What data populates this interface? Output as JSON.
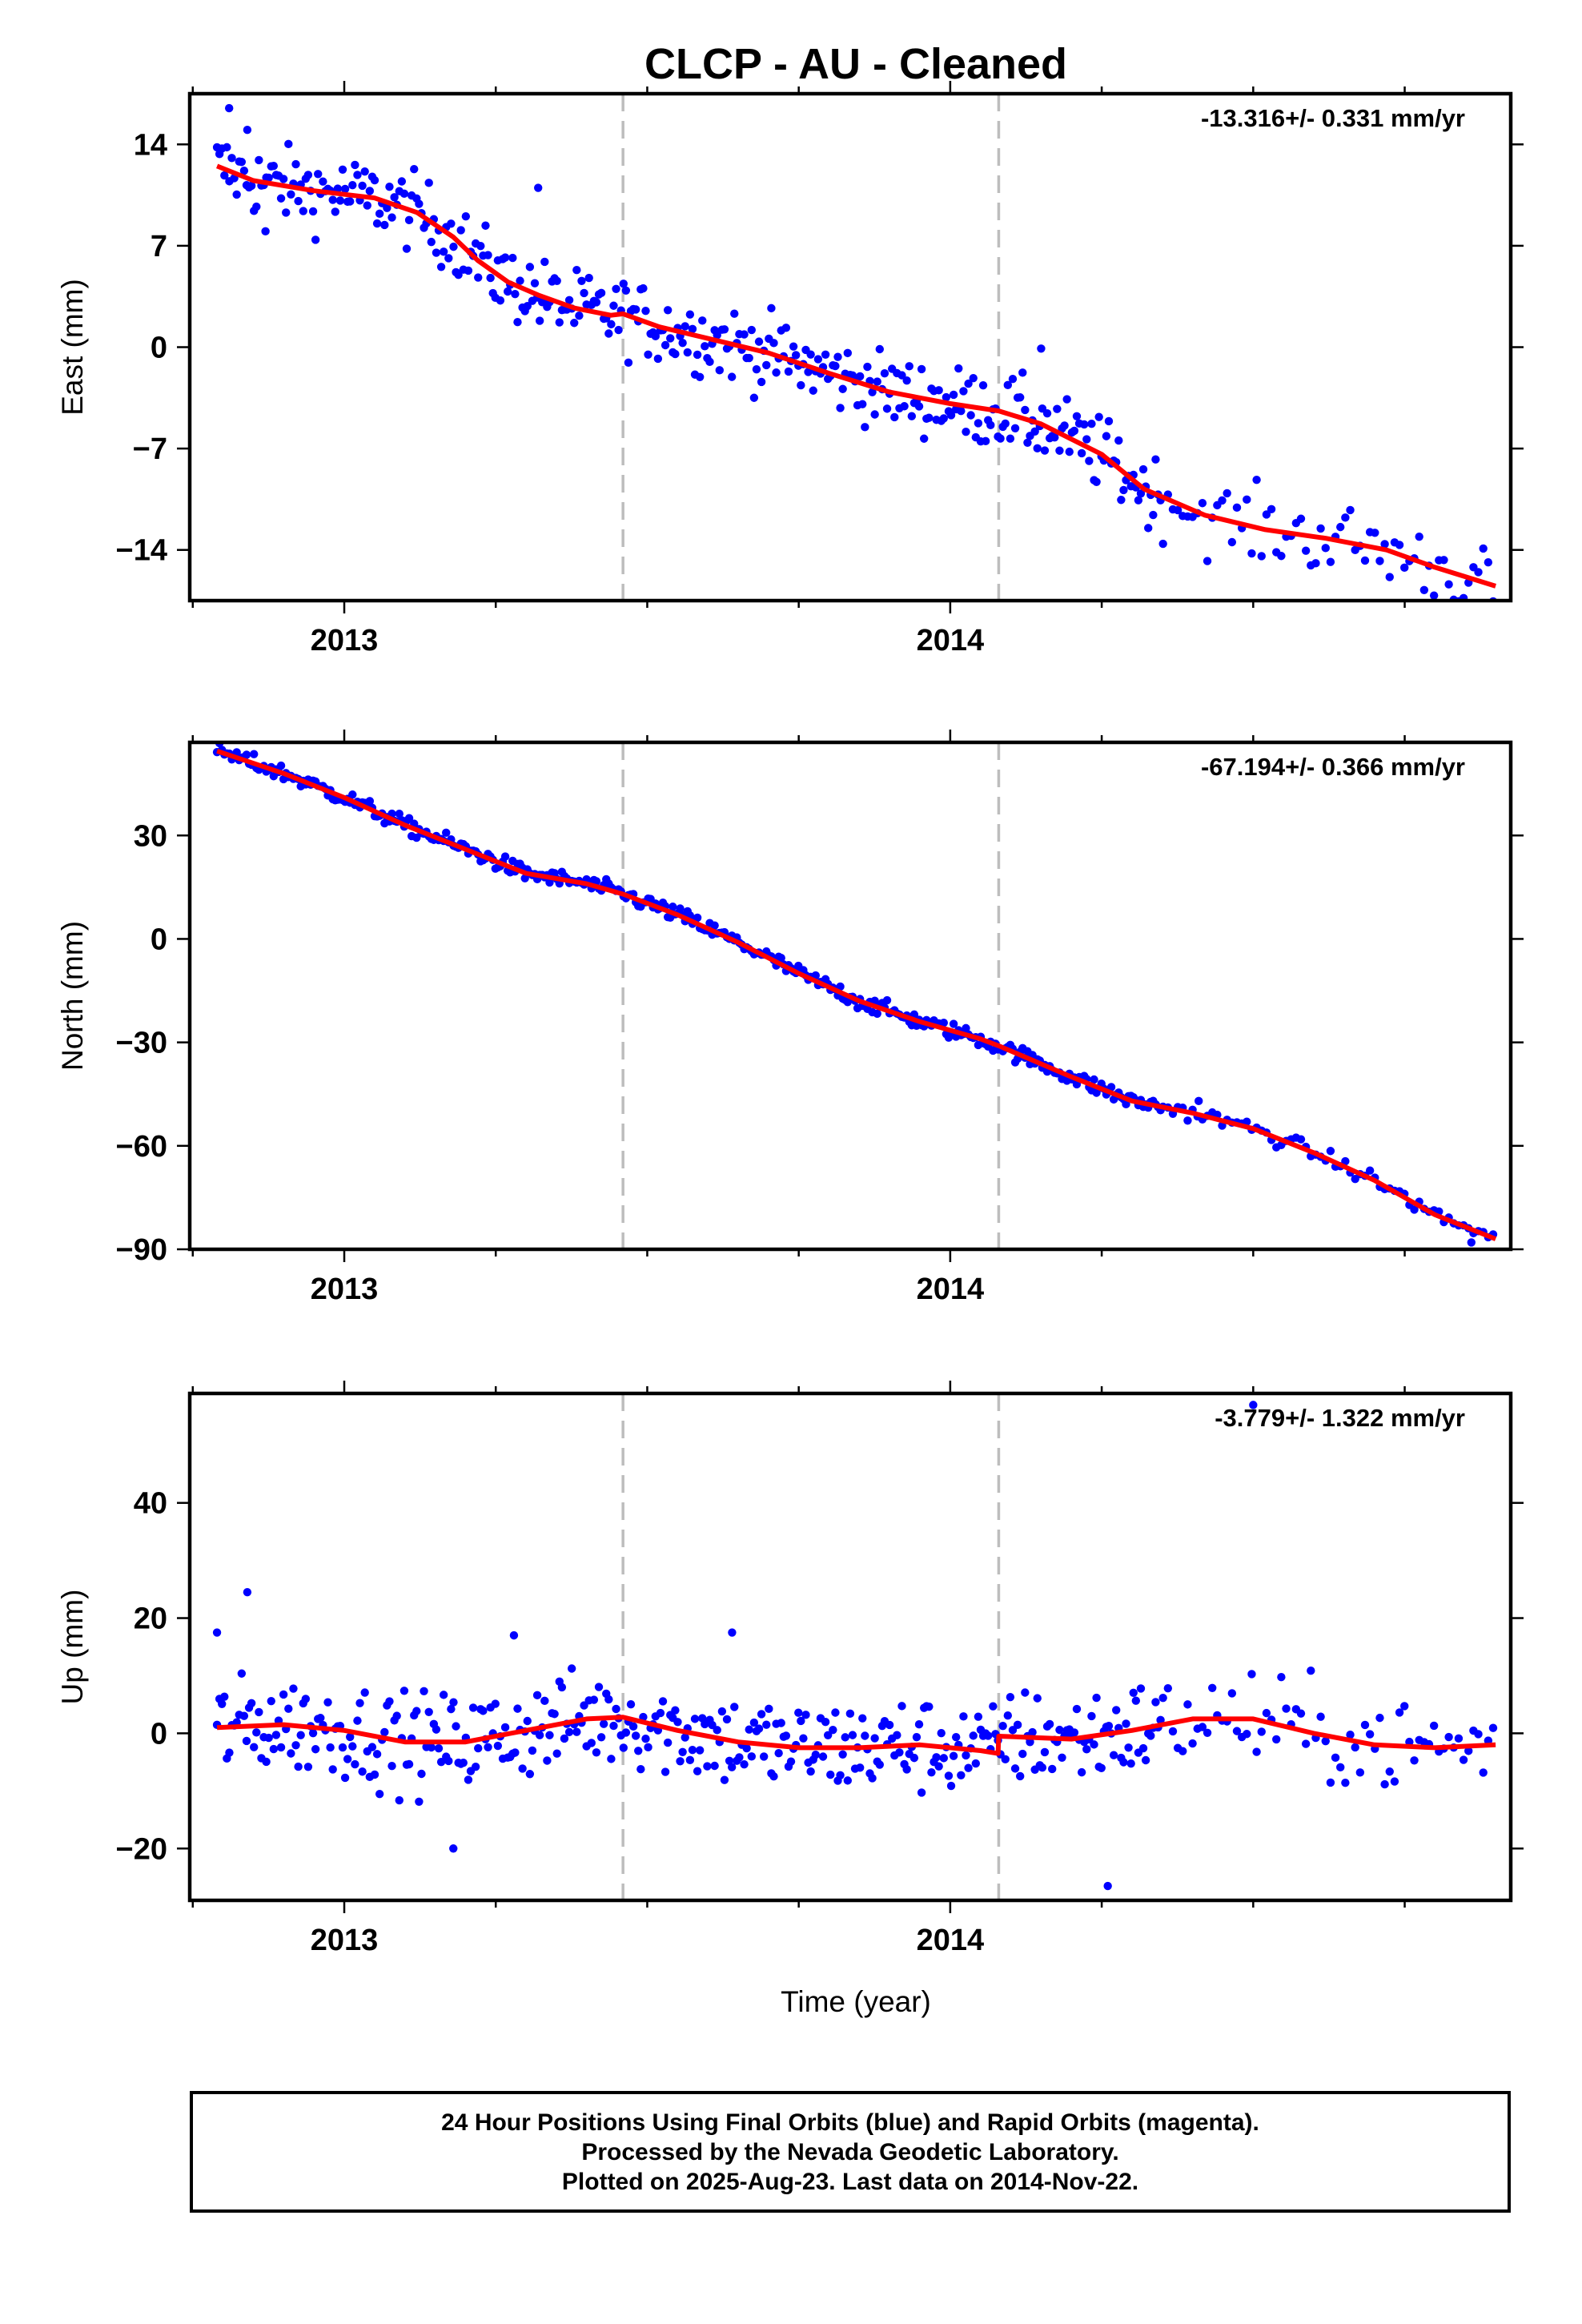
{
  "title": "CLCP  - AU - Cleaned",
  "footer": {
    "line1": "24 Hour Positions Using Final Orbits (blue) and Rapid Orbits (magenta).",
    "line2": "Processed by the Nevada Geodetic Laboratory.",
    "line3": "Plotted on 2025-Aug-23. Last data on 2014-Nov-22."
  },
  "colors": {
    "points": "#0000ff",
    "fit": "#ff0000",
    "breaks": "#bdbdbd"
  },
  "chart_data": [
    {
      "type": "scatter",
      "ylabel": "East (mm)",
      "rate_label": "-13.316+/- 0.331 mm/yr",
      "xlim": [
        2012.745,
        2014.925
      ],
      "ylim": [
        -17.5,
        17.5
      ],
      "x_ticks": [
        "2013",
        "2014"
      ],
      "y_ticks": [
        14,
        7,
        0,
        -7,
        -14
      ],
      "y_tick_labels": [
        "14",
        "7",
        "0",
        "−7",
        "−14"
      ],
      "breaks": [
        2013.46,
        2014.08
      ],
      "fit": {
        "x": [
          2012.79,
          2012.85,
          2012.95,
          2013.05,
          2013.12,
          2013.18,
          2013.22,
          2013.27,
          2013.32,
          2013.38,
          2013.44,
          2013.46,
          2013.52,
          2013.6,
          2013.7,
          2013.8,
          2013.9,
          2014.0,
          2014.08,
          2014.15,
          2014.25,
          2014.32,
          2014.42,
          2014.52,
          2014.62,
          2014.72,
          2014.8,
          2014.9
        ],
        "y": [
          12.5,
          11.5,
          10.8,
          10.3,
          9.3,
          7.6,
          6.0,
          4.5,
          3.6,
          2.7,
          2.2,
          2.3,
          1.4,
          0.6,
          -0.4,
          -1.8,
          -3.1,
          -3.9,
          -4.4,
          -5.3,
          -7.4,
          -9.8,
          -11.6,
          -12.6,
          -13.2,
          -14.0,
          -15.2,
          -16.5
        ]
      },
      "points": {
        "x_start": 2012.79,
        "x_end": 2014.9,
        "count": 520,
        "scatter_sd": 1.3,
        "dense_until": 2014.35,
        "sparse_step": 2,
        "extra_points": [
          [
            2012.81,
            16.5
          ],
          [
            2012.84,
            15.0
          ],
          [
            2013.32,
            11.0
          ],
          [
            2014.15,
            -0.1
          ],
          [
            2014.84,
            -18.5
          ],
          [
            2012.87,
            8.0
          ]
        ]
      }
    },
    {
      "type": "scatter",
      "ylabel": "North (mm)",
      "rate_label": "-67.194+/- 0.366 mm/yr",
      "xlim": [
        2012.745,
        2014.925
      ],
      "ylim": [
        -90,
        57
      ],
      "x_ticks": [
        "2013",
        "2014"
      ],
      "y_ticks": [
        30,
        0,
        -30,
        -60,
        -90
      ],
      "y_tick_labels": [
        "30",
        "0",
        "−30",
        "−60",
        "−90"
      ],
      "breaks": [
        2013.46,
        2014.08
      ],
      "fit": {
        "x": [
          2012.79,
          2012.9,
          2013.0,
          2013.1,
          2013.2,
          2013.3,
          2013.4,
          2013.46,
          2013.55,
          2013.65,
          2013.75,
          2013.85,
          2013.95,
          2014.05,
          2014.08,
          2014.2,
          2014.3,
          2014.4,
          2014.5,
          2014.6,
          2014.7,
          2014.8,
          2014.9
        ],
        "y": [
          54.5,
          48.0,
          41.0,
          33.0,
          26.0,
          19.0,
          16.0,
          13.0,
          7.0,
          -1.0,
          -10.0,
          -18.0,
          -24.0,
          -29.0,
          -31.0,
          -40.0,
          -47.0,
          -50.5,
          -55.0,
          -62.0,
          -70.0,
          -80.0,
          -87.0
        ]
      },
      "points": {
        "x_start": 2012.79,
        "x_end": 2014.9,
        "count": 520,
        "scatter_sd": 1.2,
        "dense_until": 2014.35,
        "sparse_step": 2,
        "extra_points": [
          [
            2014.41,
            -47.0
          ],
          [
            2014.86,
            -88.0
          ]
        ]
      }
    },
    {
      "type": "scatter",
      "xlabel": "Time (year)",
      "ylabel": "Up (mm)",
      "rate_label": "-3.779+/- 1.322 mm/yr",
      "xlim": [
        2012.745,
        2014.925
      ],
      "ylim": [
        -29,
        59
      ],
      "x_ticks": [
        "2013",
        "2014"
      ],
      "y_ticks": [
        40,
        20,
        0,
        -20
      ],
      "y_tick_labels": [
        "40",
        "20",
        "0",
        "−20"
      ],
      "breaks": [
        2013.46,
        2014.08
      ],
      "fit": {
        "x": [
          2012.79,
          2012.9,
          2013.0,
          2013.1,
          2013.2,
          2013.3,
          2013.4,
          2013.46,
          2013.55,
          2013.65,
          2013.75,
          2013.85,
          2013.95,
          2014.05,
          2014.079,
          2014.08,
          2014.2,
          2014.3,
          2014.4,
          2014.5,
          2014.6,
          2014.7,
          2014.8,
          2014.9
        ],
        "y": [
          1.0,
          1.5,
          0.5,
          -1.5,
          -1.5,
          0.5,
          2.5,
          2.8,
          0.5,
          -1.5,
          -2.5,
          -2.5,
          -2.0,
          -3.0,
          -3.5,
          -0.5,
          -1.0,
          0.5,
          2.5,
          2.5,
          0.0,
          -2.0,
          -2.5,
          -2.0
        ]
      },
      "points": {
        "x_start": 2012.79,
        "x_end": 2014.9,
        "count": 520,
        "scatter_sd": 4.2,
        "dense_until": 2014.35,
        "sparse_step": 2,
        "extra_points": [
          [
            2012.84,
            24.5
          ],
          [
            2013.64,
            17.5
          ],
          [
            2014.5,
            57.0
          ],
          [
            2014.26,
            -26.5
          ],
          [
            2013.18,
            -20.0
          ],
          [
            2012.79,
            17.5
          ],
          [
            2013.28,
            17.0
          ]
        ]
      }
    }
  ]
}
